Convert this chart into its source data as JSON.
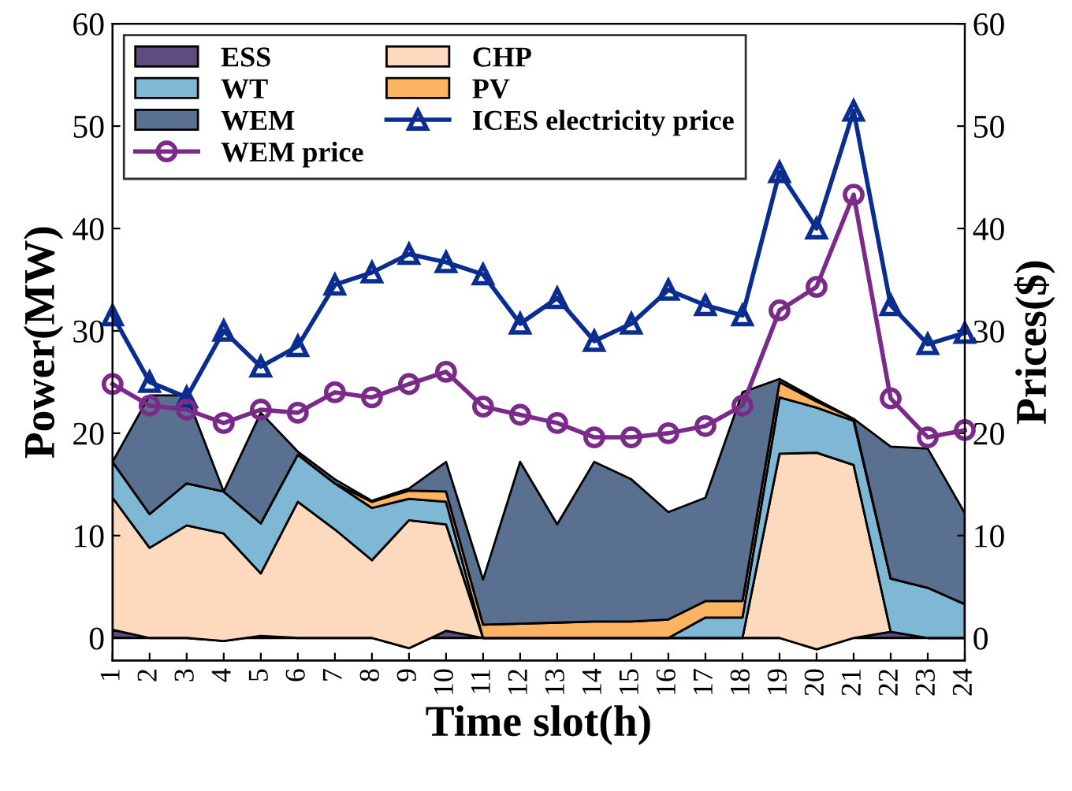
{
  "chart_data": {
    "type": "area",
    "stacked": true,
    "xlabel": "Time slot(h)",
    "ylabel": "Power(MW)",
    "y2label": "Prices($)",
    "x": [
      1,
      2,
      3,
      4,
      5,
      6,
      7,
      8,
      9,
      10,
      11,
      12,
      13,
      14,
      15,
      16,
      17,
      18,
      19,
      20,
      21,
      22,
      23,
      24
    ],
    "xlim": [
      1,
      24
    ],
    "xticks": [
      1,
      2,
      3,
      4,
      5,
      6,
      7,
      8,
      9,
      10,
      11,
      12,
      13,
      14,
      15,
      16,
      17,
      18,
      19,
      20,
      21,
      22,
      23,
      24
    ],
    "ylim": [
      -2.2,
      60
    ],
    "yticks": [
      0,
      10,
      20,
      30,
      40,
      50,
      60
    ],
    "y2lim": [
      -2.2,
      60
    ],
    "y2ticks": [
      0,
      10,
      20,
      30,
      40,
      50,
      60
    ],
    "legend": "top left",
    "grid": false,
    "series": [
      {
        "name": "ESS",
        "color": "#5e4b80",
        "values": [
          0.8,
          0,
          0,
          -0.3,
          0.2,
          0,
          0,
          0,
          -1,
          0.7,
          0,
          0,
          0,
          0,
          0,
          0,
          0,
          0,
          0,
          -1.1,
          0,
          0.6,
          0,
          0
        ]
      },
      {
        "name": "CHP",
        "color": "#fdd9bd",
        "values": [
          12.9,
          8.8,
          11,
          10.5,
          6.1,
          13.3,
          10.6,
          7.6,
          12.5,
          10.4,
          0,
          0,
          0,
          0,
          0,
          0,
          0,
          0,
          18.0,
          19.2,
          16.9,
          0,
          0,
          0
        ]
      },
      {
        "name": "WT",
        "color": "#7fb8d4",
        "values": [
          3.5,
          3.3,
          4.1,
          4.1,
          4.9,
          4.6,
          4.5,
          5.1,
          2.1,
          2.2,
          0,
          0,
          0,
          0,
          0,
          0,
          2.0,
          2.0,
          5.5,
          4.4,
          4.3,
          5.2,
          4.9,
          3.3
        ]
      },
      {
        "name": "PV",
        "color": "#fdb462",
        "values": [
          0,
          0,
          0,
          0,
          0,
          0,
          0,
          0.6,
          0.8,
          1.0,
          1.3,
          1.4,
          1.5,
          1.6,
          1.6,
          1.8,
          1.6,
          1.6,
          1.5,
          0.6,
          0.2,
          0,
          0,
          0
        ]
      },
      {
        "name": "WEM",
        "color": "#5a7090",
        "values": [
          0,
          11.6,
          8.6,
          0,
          10.8,
          0.3,
          0.4,
          0.1,
          0.2,
          2.9,
          4.4,
          15.8,
          9.6,
          15.6,
          13.9,
          10.5,
          10.1,
          20.4,
          0.3,
          0.2,
          0,
          12.9,
          13.6,
          8.9
        ]
      },
      {
        "name": "ICES electricity price",
        "type": "line",
        "axis": "y2",
        "marker": "triangle",
        "color": "#0a2d8f",
        "values": [
          31.5,
          25,
          23.5,
          30,
          26.5,
          28.5,
          34.5,
          35.7,
          37.5,
          36.7,
          35.5,
          30.7,
          33.2,
          29,
          30.7,
          34,
          32.5,
          31.5,
          45.5,
          40,
          51.5,
          32.5,
          28.7,
          29.8
        ]
      },
      {
        "name": "WEM price",
        "type": "line",
        "axis": "y2",
        "marker": "circle",
        "color": "#7b2a8a",
        "values": [
          24.8,
          22.7,
          22.3,
          21,
          22.3,
          22,
          24,
          23.5,
          24.8,
          26,
          22.6,
          21.8,
          21,
          19.6,
          19.6,
          20,
          20.7,
          22.7,
          32,
          34.3,
          43.3,
          23.4,
          19.6,
          20.3
        ]
      }
    ]
  }
}
